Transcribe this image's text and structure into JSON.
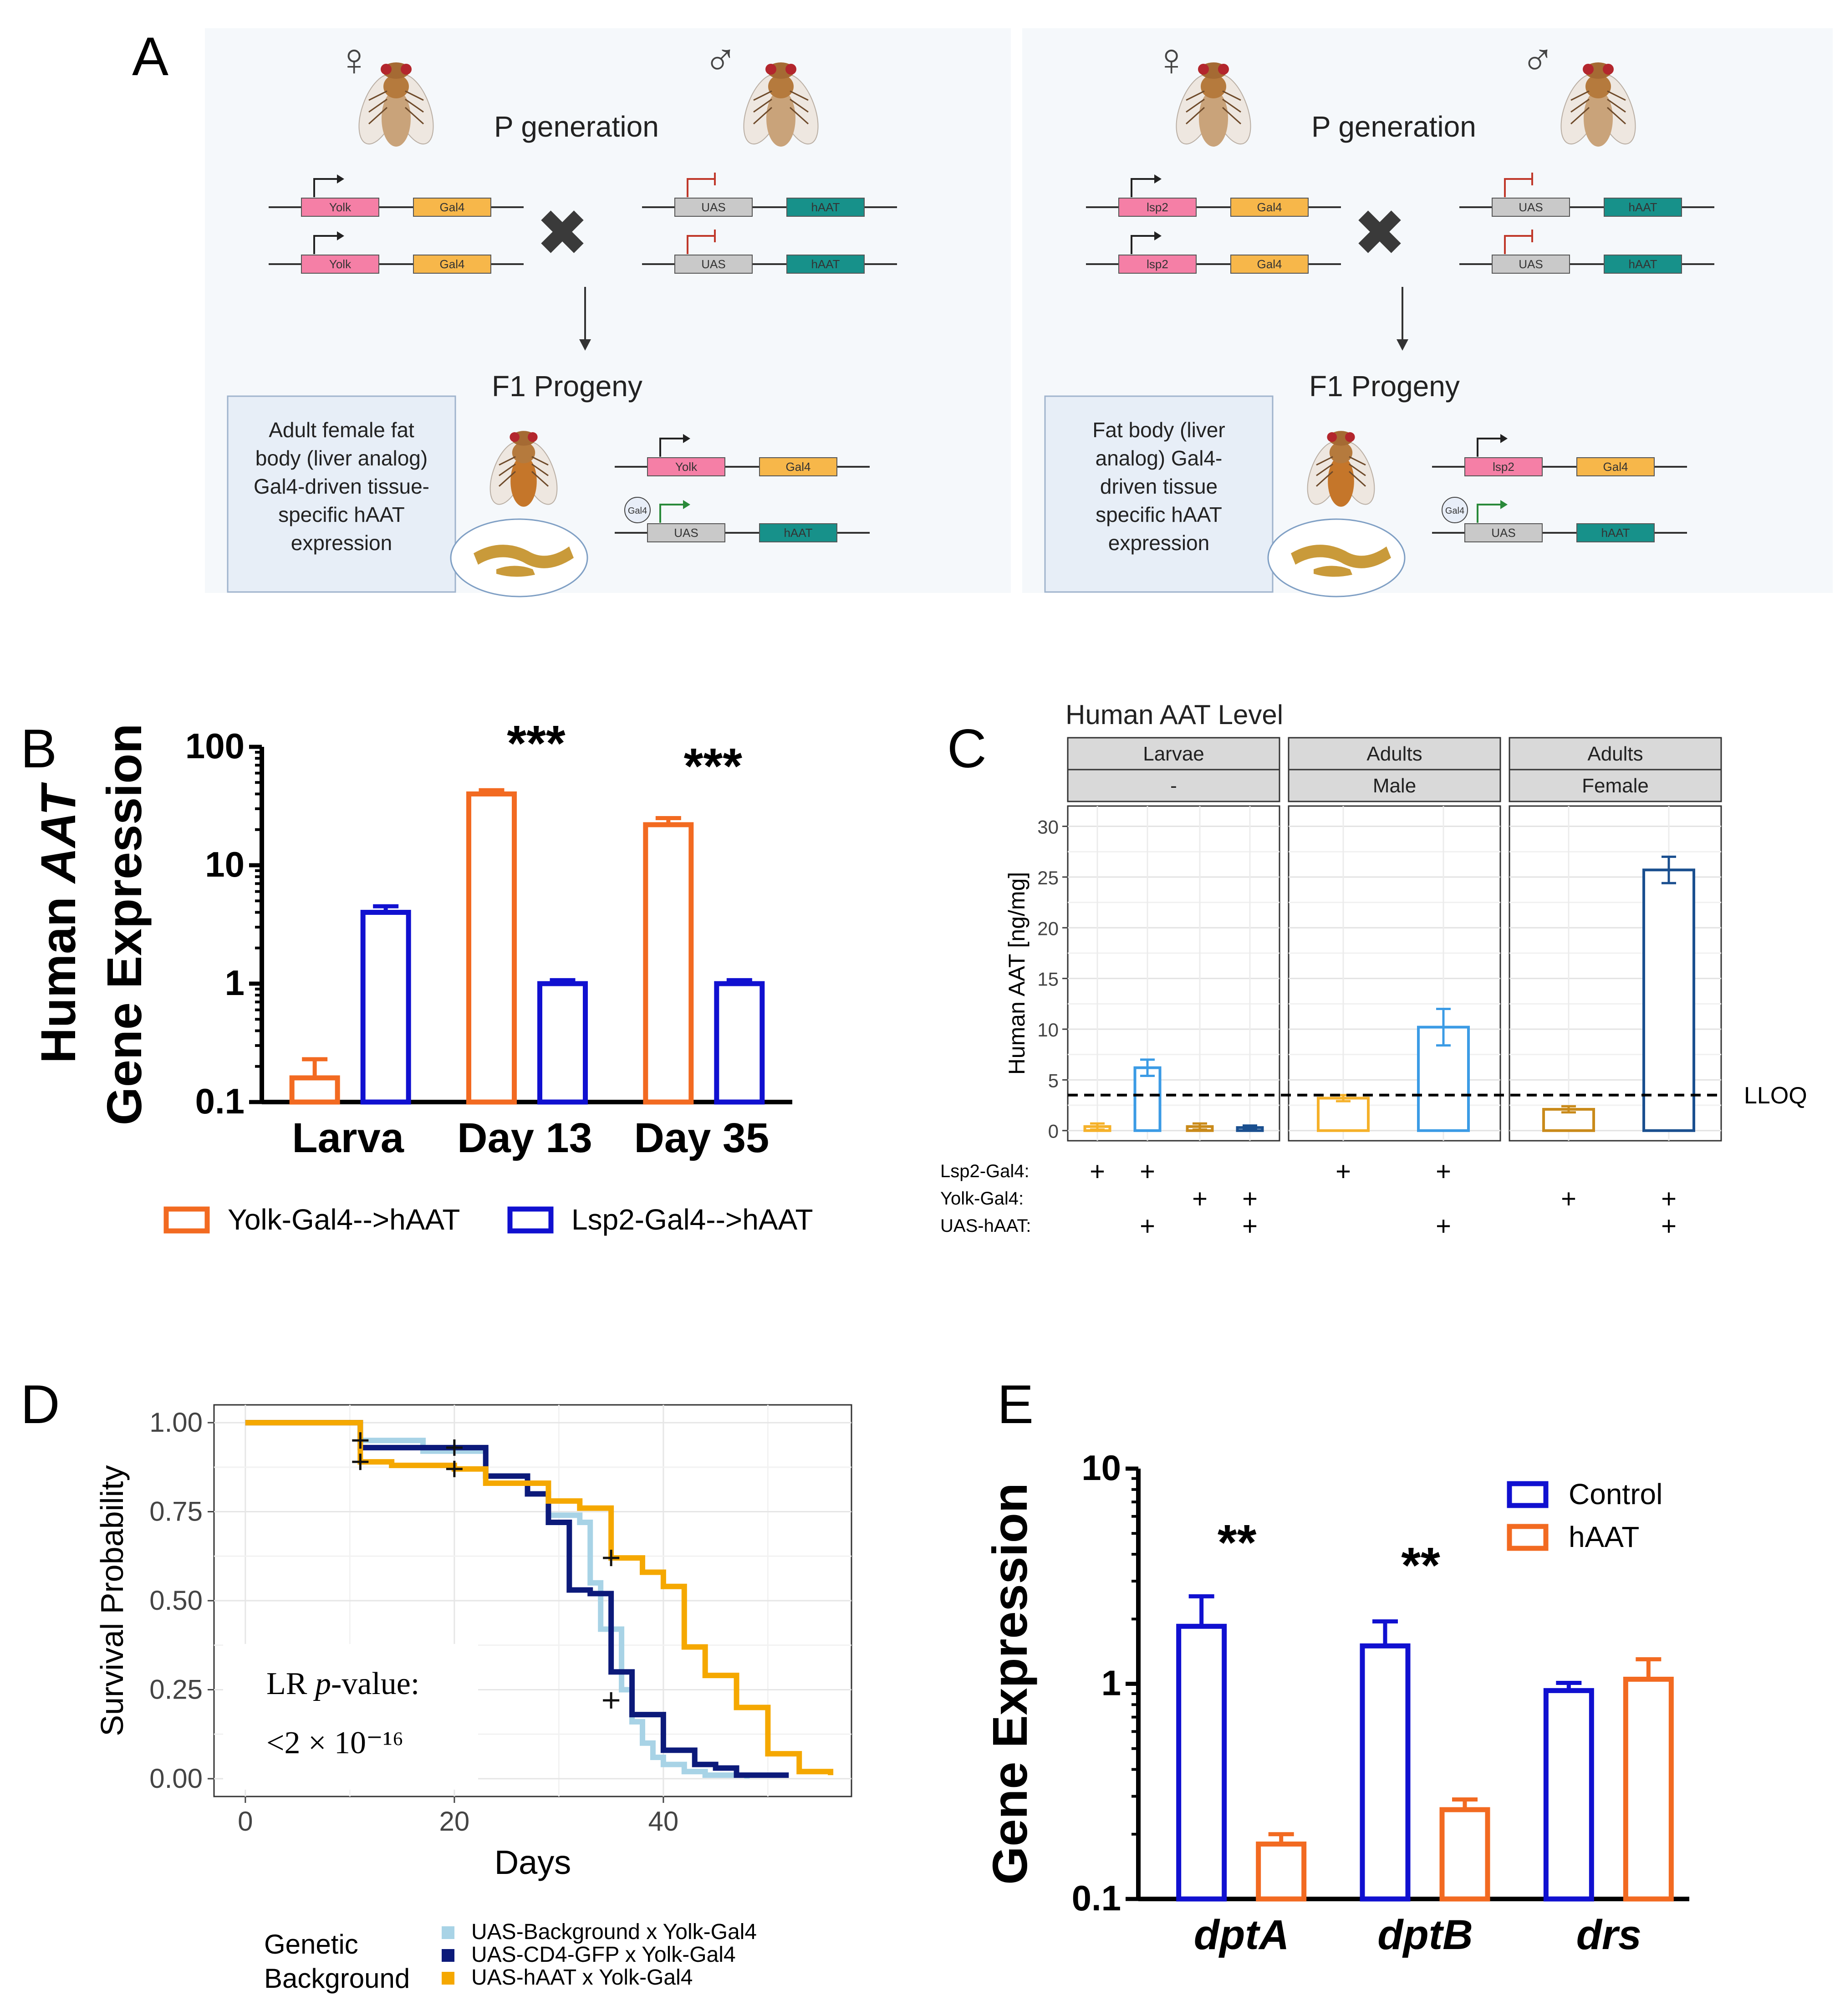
{
  "colors": {
    "orange": "#f26a21",
    "blue": "#1010d0",
    "lightblue": "#a8d3e6",
    "navy": "#0c1a7a",
    "gold": "#f5a800",
    "c_orange": "#f5b12a",
    "c_blue": "#3b9be5",
    "c_darkorange": "#c98a1a",
    "c_darkblue": "#1a4f8f",
    "yolk": "#f57fa6",
    "gal4": "#f7b74a",
    "uas": "#c9c9c9",
    "haat": "#17918a",
    "panelbg": "#f5f8fb",
    "boxbg": "#e7eef7"
  },
  "panelA": {
    "letter": "A",
    "left": {
      "female_symbol": "♀",
      "male_symbol": "♂",
      "p_generation": "P generation",
      "cross": "✖",
      "f1": "F1 Progeny",
      "driver": "Yolk",
      "gal4": "Gal4",
      "uas": "UAS",
      "haat": "hAAT",
      "gal4_protein": "Gal4",
      "box": [
        "Adult female fat",
        "body (liver analog)",
        "Gal4-driven tissue-",
        "specific hAAT",
        "expression"
      ],
      "fly_icon": "fly-icon"
    },
    "right": {
      "female_symbol": "♀",
      "male_symbol": "♂",
      "p_generation": "P generation",
      "cross": "✖",
      "f1": "F1 Progeny",
      "driver": "lsp2",
      "gal4": "Gal4",
      "uas": "UAS",
      "haat": "hAAT",
      "gal4_protein": "Gal4",
      "box": [
        "Fat body (liver",
        "analog) Gal4-",
        "driven tissue",
        "specific hAAT",
        "expression"
      ],
      "fly_icon": "fly-icon"
    }
  },
  "chart_data": [
    {
      "panel": "B",
      "type": "bar",
      "yscale": "log",
      "ylim": [
        0.1,
        100
      ],
      "yticks": [
        "100",
        "10",
        "1",
        "0.1"
      ],
      "ylabel": [
        "Human AAT",
        "Gene Expression"
      ],
      "categories": [
        "Larva",
        "Day 13",
        "Day 35"
      ],
      "significance": [
        "",
        "***",
        "***"
      ],
      "series": [
        {
          "name": "Yolk-Gal4-->hAAT",
          "values": [
            0.16,
            40,
            22
          ],
          "errors": [
            0.07,
            3,
            3
          ]
        },
        {
          "name": "Lsp2-Gal4-->hAAT",
          "values": [
            4,
            1.0,
            1.0
          ],
          "errors": [
            0.5,
            0.07,
            0.07
          ]
        }
      ]
    },
    {
      "panel": "C",
      "type": "bar",
      "title": "Human AAT Level",
      "ylabel": "Human AAT [ng/mg]",
      "ylim": [
        0,
        30
      ],
      "yticks": [
        "0",
        "5",
        "10",
        "15",
        "20",
        "25",
        "30"
      ],
      "lloq": 3.5,
      "lloq_label": "LLOQ",
      "facets": [
        {
          "top": "Larvae",
          "sub": "-",
          "bars": [
            0.4,
            6.2,
            0.4,
            0.3
          ],
          "errors": [
            0.3,
            0.8,
            0.3,
            0.2
          ],
          "color_keys": [
            "c_orange",
            "c_blue",
            "c_darkorange",
            "c_darkblue"
          ]
        },
        {
          "top": "Adults",
          "sub": "Male",
          "bars": [
            3.2,
            10.2
          ],
          "errors": [
            0.3,
            1.8
          ],
          "color_keys": [
            "c_orange",
            "c_blue"
          ]
        },
        {
          "top": "Adults",
          "sub": "Female",
          "bars": [
            2.1,
            25.7
          ],
          "errors": [
            0.3,
            1.3
          ],
          "color_keys": [
            "c_darkorange",
            "c_darkblue"
          ]
        }
      ],
      "row_labels": [
        "Lsp2-Gal4:",
        "Yolk-Gal4:",
        "UAS-hAAT:"
      ],
      "plus": "+",
      "matrix": [
        [
          [
            "+",
            "",
            ""
          ],
          [
            "+",
            "",
            "+"
          ],
          [
            "",
            "+",
            ""
          ],
          [
            "",
            "+",
            "+"
          ]
        ],
        [
          [
            "+",
            "",
            ""
          ],
          [
            "+",
            "",
            "+"
          ]
        ],
        [
          [
            "",
            "+",
            ""
          ],
          [
            "",
            "+",
            "+"
          ]
        ]
      ]
    },
    {
      "panel": "D",
      "type": "line",
      "xlabel": "Days",
      "ylabel": "Survival Probability",
      "xlim": [
        -3,
        58
      ],
      "ylim": [
        -0.05,
        1.05
      ],
      "xticks": [
        "0",
        "20",
        "40"
      ],
      "yticks": [
        "0.00",
        "0.25",
        "0.50",
        "0.75",
        "1.00"
      ],
      "annotation_lines": [
        "LR p-value:",
        "<2 × 10⁻¹⁶"
      ],
      "legend_title": [
        "Genetic",
        "Background"
      ],
      "series": [
        {
          "name": "UAS-Background x Yolk-Gal4",
          "color_key": "lightblue",
          "x": [
            0,
            11,
            17,
            23,
            27,
            29,
            32,
            33,
            34,
            36,
            37,
            38,
            39,
            40,
            42,
            44,
            48
          ],
          "y": [
            1.0,
            0.95,
            0.92,
            0.85,
            0.8,
            0.74,
            0.72,
            0.55,
            0.42,
            0.25,
            0.16,
            0.1,
            0.06,
            0.04,
            0.02,
            0.01,
            0.0
          ]
        },
        {
          "name": "UAS-CD4-GFP x Yolk-Gal4",
          "color_key": "navy",
          "x": [
            0,
            11,
            23,
            27,
            29,
            31,
            33,
            35,
            37,
            40,
            43,
            45,
            47,
            52
          ],
          "y": [
            1.0,
            0.93,
            0.85,
            0.8,
            0.72,
            0.53,
            0.52,
            0.3,
            0.18,
            0.08,
            0.04,
            0.03,
            0.01,
            0.01
          ]
        },
        {
          "name": "UAS-hAAT x Yolk-Gal4",
          "color_key": "gold",
          "x": [
            0,
            11,
            14,
            20,
            23,
            29,
            32,
            35,
            38,
            40,
            42,
            44,
            47,
            50,
            53,
            56
          ],
          "y": [
            1.0,
            0.89,
            0.88,
            0.87,
            0.83,
            0.78,
            0.76,
            0.62,
            0.58,
            0.54,
            0.37,
            0.29,
            0.2,
            0.07,
            0.02,
            0.01
          ]
        }
      ],
      "censor_marks": [
        [
          11,
          0.95
        ],
        [
          11,
          0.89
        ],
        [
          20,
          0.93
        ],
        [
          20,
          0.87
        ],
        [
          35,
          0.62
        ],
        [
          35,
          0.22
        ]
      ]
    },
    {
      "panel": "E",
      "type": "bar",
      "yscale": "log",
      "ylim": [
        0.1,
        10
      ],
      "yticks": [
        "10",
        "1",
        "0.1"
      ],
      "ylabel": "Gene Expression",
      "categories": [
        "dptA",
        "dptB",
        "drs"
      ],
      "significance": [
        "**",
        "**",
        ""
      ],
      "series": [
        {
          "name": "Control",
          "values": [
            1.85,
            1.5,
            0.93
          ],
          "errors": [
            0.7,
            0.45,
            0.08
          ]
        },
        {
          "name": "hAAT",
          "values": [
            0.18,
            0.26,
            1.05
          ],
          "errors": [
            0.02,
            0.03,
            0.25
          ]
        }
      ]
    }
  ],
  "panel_letters": {
    "B": "B",
    "C": "C",
    "D": "D",
    "E": "E"
  }
}
